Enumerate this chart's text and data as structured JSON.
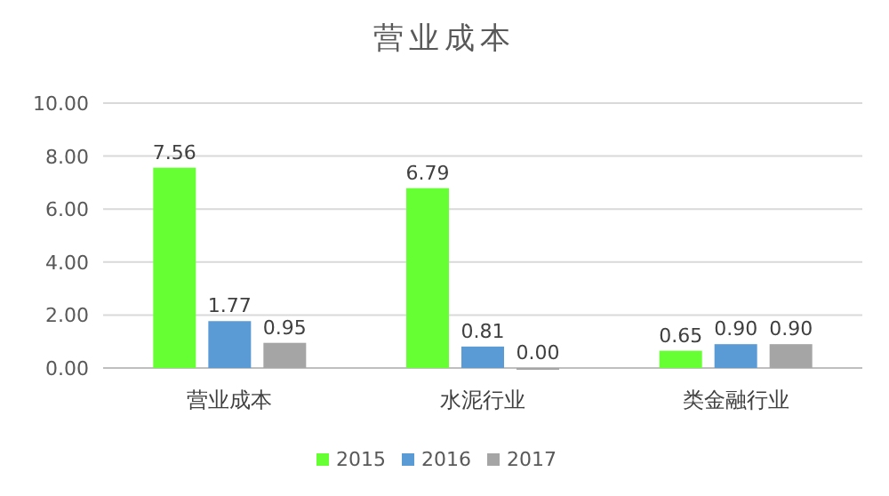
{
  "chart_data": {
    "type": "bar",
    "title": "营业成本",
    "categories": [
      "营业成本",
      "水泥行业",
      "类金融行业"
    ],
    "series": [
      {
        "name": "2015",
        "color": "#66ff33",
        "values": [
          7.56,
          6.79,
          0.65
        ],
        "value_labels": [
          "7.56",
          "6.79",
          "0.65"
        ]
      },
      {
        "name": "2016",
        "color": "#5b9bd5",
        "values": [
          1.77,
          0.81,
          0.9
        ],
        "value_labels": [
          "1.77",
          "0.81",
          "0.90"
        ]
      },
      {
        "name": "2017",
        "color": "#a5a5a5",
        "values": [
          0.95,
          0,
          0.9
        ],
        "value_labels": [
          "0.95",
          "0.00",
          "0.90"
        ]
      }
    ],
    "ylim": [
      0,
      10
    ],
    "yticks": [
      {
        "value": 0,
        "label": "0.00"
      },
      {
        "value": 2,
        "label": "2.00"
      },
      {
        "value": 4,
        "label": "4.00"
      },
      {
        "value": 6,
        "label": "6.00"
      },
      {
        "value": 8,
        "label": "8.00"
      },
      {
        "value": 10,
        "label": "10.00"
      }
    ],
    "grid": "y",
    "legend": "bottom"
  }
}
